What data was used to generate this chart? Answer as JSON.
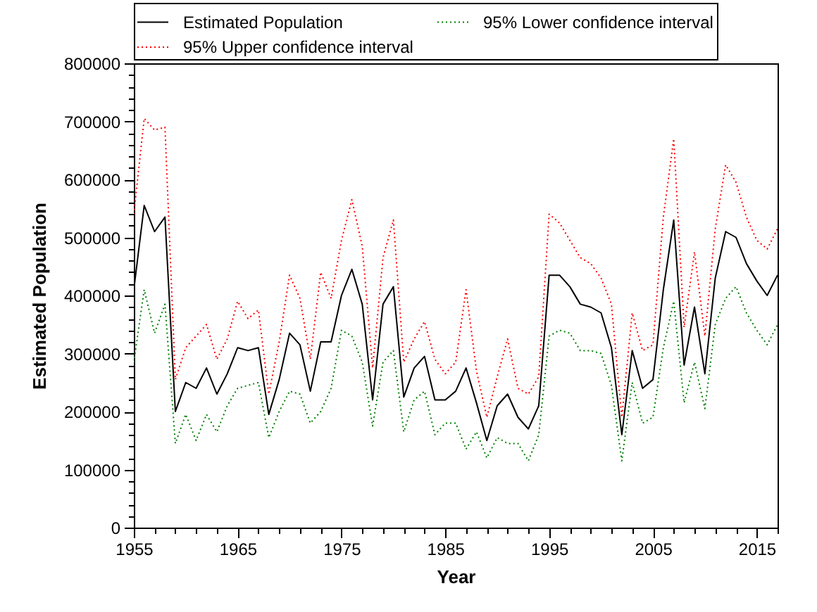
{
  "chart_data": {
    "type": "line",
    "xlabel": "Year",
    "ylabel": "Estimated Population",
    "legend": "top",
    "x": [
      1955,
      1956,
      1957,
      1958,
      1959,
      1960,
      1961,
      1962,
      1963,
      1964,
      1965,
      1966,
      1967,
      1968,
      1969,
      1970,
      1971,
      1972,
      1973,
      1974,
      1975,
      1976,
      1977,
      1978,
      1979,
      1980,
      1981,
      1982,
      1983,
      1984,
      1985,
      1986,
      1987,
      1988,
      1989,
      1990,
      1991,
      1992,
      1993,
      1994,
      1995,
      1996,
      1997,
      1998,
      1999,
      2000,
      2001,
      2002,
      2003,
      2004,
      2005,
      2006,
      2007,
      2008,
      2009,
      2010,
      2011,
      2012,
      2013,
      2014,
      2015,
      2016,
      2017
    ],
    "series": [
      {
        "name": "Estimated Population",
        "color": "#000000",
        "line_style": "solid",
        "values": [
          410000,
          555000,
          510000,
          535000,
          200000,
          250000,
          240000,
          275000,
          230000,
          265000,
          310000,
          305000,
          310000,
          195000,
          255000,
          335000,
          315000,
          235000,
          320000,
          320000,
          400000,
          445000,
          385000,
          220000,
          385000,
          415000,
          225000,
          275000,
          295000,
          220000,
          220000,
          235000,
          275000,
          215000,
          150000,
          210000,
          230000,
          190000,
          170000,
          210000,
          435000,
          435000,
          415000,
          385000,
          380000,
          370000,
          310000,
          160000,
          305000,
          240000,
          255000,
          410000,
          530000,
          280000,
          380000,
          265000,
          430000,
          510000,
          500000,
          455000,
          425000,
          400000,
          435000
        ]
      },
      {
        "name": "95% Lower confidence interval",
        "color": "#008000",
        "line_style": "dotted",
        "values": [
          285000,
          410000,
          335000,
          385000,
          145000,
          195000,
          150000,
          195000,
          165000,
          210000,
          240000,
          245000,
          250000,
          155000,
          200000,
          235000,
          230000,
          180000,
          200000,
          240000,
          340000,
          330000,
          285000,
          175000,
          285000,
          305000,
          165000,
          220000,
          235000,
          160000,
          180000,
          180000,
          135000,
          165000,
          120000,
          155000,
          145000,
          145000,
          115000,
          160000,
          330000,
          340000,
          335000,
          305000,
          305000,
          300000,
          245000,
          115000,
          250000,
          180000,
          190000,
          310000,
          390000,
          215000,
          285000,
          205000,
          350000,
          395000,
          415000,
          370000,
          340000,
          315000,
          350000
        ]
      },
      {
        "name": "95% Upper confidence interval",
        "color": "#ff0000",
        "line_style": "dotted",
        "values": [
          540000,
          705000,
          685000,
          690000,
          255000,
          310000,
          330000,
          350000,
          290000,
          325000,
          390000,
          360000,
          375000,
          230000,
          320000,
          435000,
          395000,
          290000,
          440000,
          395000,
          495000,
          565000,
          485000,
          275000,
          465000,
          530000,
          285000,
          325000,
          355000,
          290000,
          265000,
          285000,
          410000,
          270000,
          190000,
          260000,
          325000,
          240000,
          230000,
          260000,
          540000,
          525000,
          495000,
          465000,
          455000,
          430000,
          385000,
          190000,
          370000,
          305000,
          315000,
          535000,
          670000,
          345000,
          475000,
          330000,
          515000,
          625000,
          595000,
          535000,
          495000,
          480000,
          515000
        ]
      }
    ],
    "xlim": [
      1955,
      2017
    ],
    "ylim": [
      0,
      800000
    ],
    "xticks": [
      1955,
      {
        "value": 1957,
        "label": null
      },
      {
        "value": 1959,
        "label": null
      },
      {
        "value": 1961,
        "label": null
      },
      {
        "value": 1963,
        "label": null
      },
      1965,
      {
        "value": 1967,
        "label": null
      },
      {
        "value": 1969,
        "label": null
      },
      {
        "value": 1971,
        "label": null
      },
      {
        "value": 1973,
        "label": null
      },
      1975,
      {
        "value": 1977,
        "label": null
      },
      {
        "value": 1979,
        "label": null
      },
      {
        "value": 1981,
        "label": null
      },
      {
        "value": 1983,
        "label": null
      },
      1985,
      {
        "value": 1987,
        "label": null
      },
      {
        "value": 1989,
        "label": null
      },
      {
        "value": 1991,
        "label": null
      },
      {
        "value": 1993,
        "label": null
      },
      1995,
      {
        "value": 1997,
        "label": null
      },
      {
        "value": 1999,
        "label": null
      },
      {
        "value": 2001,
        "label": null
      },
      {
        "value": 2003,
        "label": null
      },
      2005,
      {
        "value": 2007,
        "label": null
      },
      {
        "value": 2009,
        "label": null
      },
      {
        "value": 2011,
        "label": null
      },
      {
        "value": 2013,
        "label": null
      },
      2015,
      {
        "value": 2017,
        "label": null
      }
    ],
    "yticks": [
      0,
      {
        "value": 20000,
        "label": null
      },
      {
        "value": 40000,
        "label": null
      },
      {
        "value": 60000,
        "label": null
      },
      {
        "value": 80000,
        "label": null
      },
      100000,
      {
        "value": 120000,
        "label": null
      },
      {
        "value": 140000,
        "label": null
      },
      {
        "value": 160000,
        "label": null
      },
      {
        "value": 180000,
        "label": null
      },
      200000,
      {
        "value": 220000,
        "label": null
      },
      {
        "value": 240000,
        "label": null
      },
      {
        "value": 260000,
        "label": null
      },
      {
        "value": 280000,
        "label": null
      },
      300000,
      {
        "value": 320000,
        "label": null
      },
      {
        "value": 340000,
        "label": null
      },
      {
        "value": 360000,
        "label": null
      },
      {
        "value": 380000,
        "label": null
      },
      400000,
      {
        "value": 420000,
        "label": null
      },
      {
        "value": 440000,
        "label": null
      },
      {
        "value": 460000,
        "label": null
      },
      {
        "value": 480000,
        "label": null
      },
      500000,
      {
        "value": 520000,
        "label": null
      },
      {
        "value": 540000,
        "label": null
      },
      {
        "value": 560000,
        "label": null
      },
      {
        "value": 580000,
        "label": null
      },
      600000,
      {
        "value": 620000,
        "label": null
      },
      {
        "value": 640000,
        "label": null
      },
      {
        "value": 660000,
        "label": null
      },
      {
        "value": 680000,
        "label": null
      },
      700000,
      {
        "value": 720000,
        "label": null
      },
      {
        "value": 740000,
        "label": null
      },
      {
        "value": 760000,
        "label": null
      },
      {
        "value": 780000,
        "label": null
      },
      800000
    ]
  }
}
